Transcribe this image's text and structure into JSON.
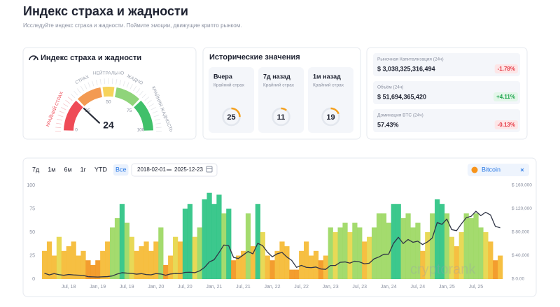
{
  "header": {
    "title": "Индекс страха и жадности",
    "subtitle": "Исследуйте индекс страха и жадности. Поймите эмоции, движущие крипто рынком."
  },
  "gauge_card": {
    "title": "Индекс страха и жадности",
    "value": 24,
    "ticks": [
      0,
      25,
      50,
      75,
      100
    ],
    "segments": [
      {
        "label": "КРАЙНИЙ СТРАХ",
        "from": 0,
        "to": 25,
        "color": "#ef4b57"
      },
      {
        "label": "СТРАХ",
        "from": 25,
        "to": 45,
        "color": "#f39a52"
      },
      {
        "label": "НЕЙТРАЛЬНО",
        "from": 45,
        "to": 55,
        "color": "#f6d35b"
      },
      {
        "label": "ЖАДНО",
        "from": 55,
        "to": 75,
        "color": "#8fd47a"
      },
      {
        "label": "КРАЙНЯЯ ЖАДНОСТЬ",
        "from": 75,
        "to": 100,
        "color": "#40c06a"
      }
    ]
  },
  "history": {
    "title": "Исторические значения",
    "items": [
      {
        "period": "Вчера",
        "label": "Крайний страх",
        "value": 25
      },
      {
        "period": "7д назад",
        "label": "Крайний страх",
        "value": 11
      },
      {
        "period": "1м назад",
        "label": "Крайний страх",
        "value": 19
      }
    ]
  },
  "stats": [
    {
      "label": "Рыночная Капитализация (24ч)",
      "value": "$ 3,038,325,316,494",
      "change": "-1.78%"
    },
    {
      "label": "Объём (24ч)",
      "value": "$ 51,694,365,420",
      "change": "+4.11%"
    },
    {
      "label": "Доминация BTC (24ч)",
      "value": "57.43%",
      "change": "-0.13%"
    }
  ],
  "controls": {
    "ranges": [
      "7д",
      "1м",
      "6м",
      "1г",
      "YTD",
      "Все"
    ],
    "active": 5,
    "date_from": "2018-02-01",
    "date_to": "2025-12-23"
  },
  "chart_data": {
    "type": "bar-line",
    "watermark": "cryptorank",
    "grid": false,
    "x": [
      "2018-02",
      "2018-03",
      "2018-04",
      "2018-05",
      "2018-06",
      "2018-07",
      "2018-08",
      "2018-09",
      "2018-10",
      "2018-11",
      "2018-12",
      "2019-01",
      "2019-02",
      "2019-03",
      "2019-04",
      "2019-05",
      "2019-06",
      "2019-07",
      "2019-08",
      "2019-09",
      "2019-10",
      "2019-11",
      "2019-12",
      "2020-01",
      "2020-02",
      "2020-03",
      "2020-04",
      "2020-05",
      "2020-06",
      "2020-07",
      "2020-08",
      "2020-09",
      "2020-10",
      "2020-11",
      "2020-12",
      "2021-01",
      "2021-02",
      "2021-03",
      "2021-04",
      "2021-05",
      "2021-06",
      "2021-07",
      "2021-08",
      "2021-09",
      "2021-10",
      "2021-11",
      "2021-12",
      "2022-01",
      "2022-02",
      "2022-03",
      "2022-04",
      "2022-05",
      "2022-06",
      "2022-07",
      "2022-08",
      "2022-09",
      "2022-10",
      "2022-11",
      "2022-12",
      "2023-01",
      "2023-02",
      "2023-03",
      "2023-04",
      "2023-05",
      "2023-06",
      "2023-07",
      "2023-08",
      "2023-09",
      "2023-10",
      "2023-11",
      "2023-12",
      "2024-01",
      "2024-02",
      "2024-03",
      "2024-04",
      "2024-05",
      "2024-06",
      "2024-07",
      "2024-08",
      "2024-09",
      "2024-10",
      "2024-11",
      "2024-12",
      "2025-01",
      "2025-02",
      "2025-03",
      "2025-04",
      "2025-05",
      "2025-06",
      "2025-07",
      "2025-08",
      "2025-09",
      "2025-10",
      "2025-11",
      "2025-12"
    ],
    "xlim": [
      "2018-02",
      "2025-12"
    ],
    "xticks": [
      {
        "value": "2018-07",
        "label": "Jul, 18"
      },
      {
        "value": "2019-01",
        "label": "Jan, 19"
      },
      {
        "value": "2019-07",
        "label": "Jul, 19"
      },
      {
        "value": "2020-01",
        "label": "Jan, 20"
      },
      {
        "value": "2020-07",
        "label": "Jul, 20"
      },
      {
        "value": "2021-01",
        "label": "Jan, 21"
      },
      {
        "value": "2021-07",
        "label": "Jul, 21"
      },
      {
        "value": "2022-01",
        "label": "Jan, 22"
      },
      {
        "value": "2022-07",
        "label": "Jul, 22"
      },
      {
        "value": "2023-01",
        "label": "Jan, 23"
      },
      {
        "value": "2023-07",
        "label": "Jul, 23"
      },
      {
        "value": "2024-01",
        "label": "Jan, 24"
      },
      {
        "value": "2024-07",
        "label": "Jul, 24"
      },
      {
        "value": "2025-01",
        "label": "Jan, 25"
      },
      {
        "value": "2025-07",
        "label": "Jul, 25"
      }
    ],
    "ylim": [
      0,
      100
    ],
    "yticks": [
      0,
      25,
      50,
      75,
      100
    ],
    "y2lim": [
      0,
      160000
    ],
    "y2ticks": [
      {
        "value": 0,
        "label": "$ 0.00"
      },
      {
        "value": 40000,
        "label": "$ 40,000"
      },
      {
        "value": 80000,
        "label": "$ 80,000"
      },
      {
        "value": 120000,
        "label": "$ 120,000"
      },
      {
        "value": 160000,
        "label": "$ 160,000"
      }
    ],
    "series": [
      {
        "type": "bar",
        "colors": [
          "#f29218",
          "#f5b82e",
          "#e6d545",
          "#9ad75e",
          "#27c281"
        ],
        "values": [
          30,
          40,
          25,
          45,
          30,
          35,
          40,
          25,
          30,
          20,
          15,
          20,
          30,
          40,
          55,
          65,
          80,
          60,
          45,
          30,
          35,
          40,
          30,
          40,
          55,
          15,
          25,
          45,
          40,
          75,
          80,
          45,
          55,
          85,
          92,
          80,
          90,
          70,
          75,
          20,
          25,
          30,
          70,
          35,
          80,
          50,
          25,
          20,
          30,
          40,
          35,
          10,
          10,
          30,
          40,
          25,
          30,
          20,
          25,
          55,
          50,
          55,
          60,
          50,
          60,
          55,
          40,
          45,
          55,
          70,
          70,
          60,
          80,
          80,
          65,
          70,
          55,
          60,
          30,
          50,
          70,
          85,
          80,
          70,
          45,
          35,
          50,
          70,
          65,
          70,
          55,
          50,
          40,
          20,
          25
        ]
      },
      {
        "type": "line",
        "name": "Bitcoin",
        "color": "#2f3445",
        "axis": "y2",
        "values": [
          10000,
          7000,
          9200,
          7500,
          6400,
          7700,
          7000,
          6600,
          6300,
          4000,
          3700,
          3450,
          3800,
          4100,
          5300,
          8500,
          10800,
          10100,
          9600,
          8300,
          9200,
          7600,
          7200,
          9300,
          8600,
          6400,
          8600,
          9450,
          9100,
          11300,
          11600,
          10800,
          13800,
          19700,
          29000,
          33000,
          45000,
          58000,
          57000,
          37000,
          35000,
          41000,
          47000,
          43000,
          61000,
          57000,
          46000,
          38000,
          43000,
          45500,
          37700,
          31800,
          19900,
          23300,
          20000,
          19400,
          20500,
          17200,
          16500,
          23100,
          23100,
          28500,
          29200,
          27200,
          30500,
          29200,
          26000,
          27000,
          34500,
          37700,
          42300,
          42500,
          61000,
          71300,
          60600,
          67500,
          62700,
          64600,
          58900,
          63300,
          70200,
          96400,
          93400,
          102400,
          84400,
          82500,
          94200,
          104600,
          107100,
          115700,
          108200,
          114000,
          109500,
          90000,
          87500
        ]
      }
    ]
  }
}
